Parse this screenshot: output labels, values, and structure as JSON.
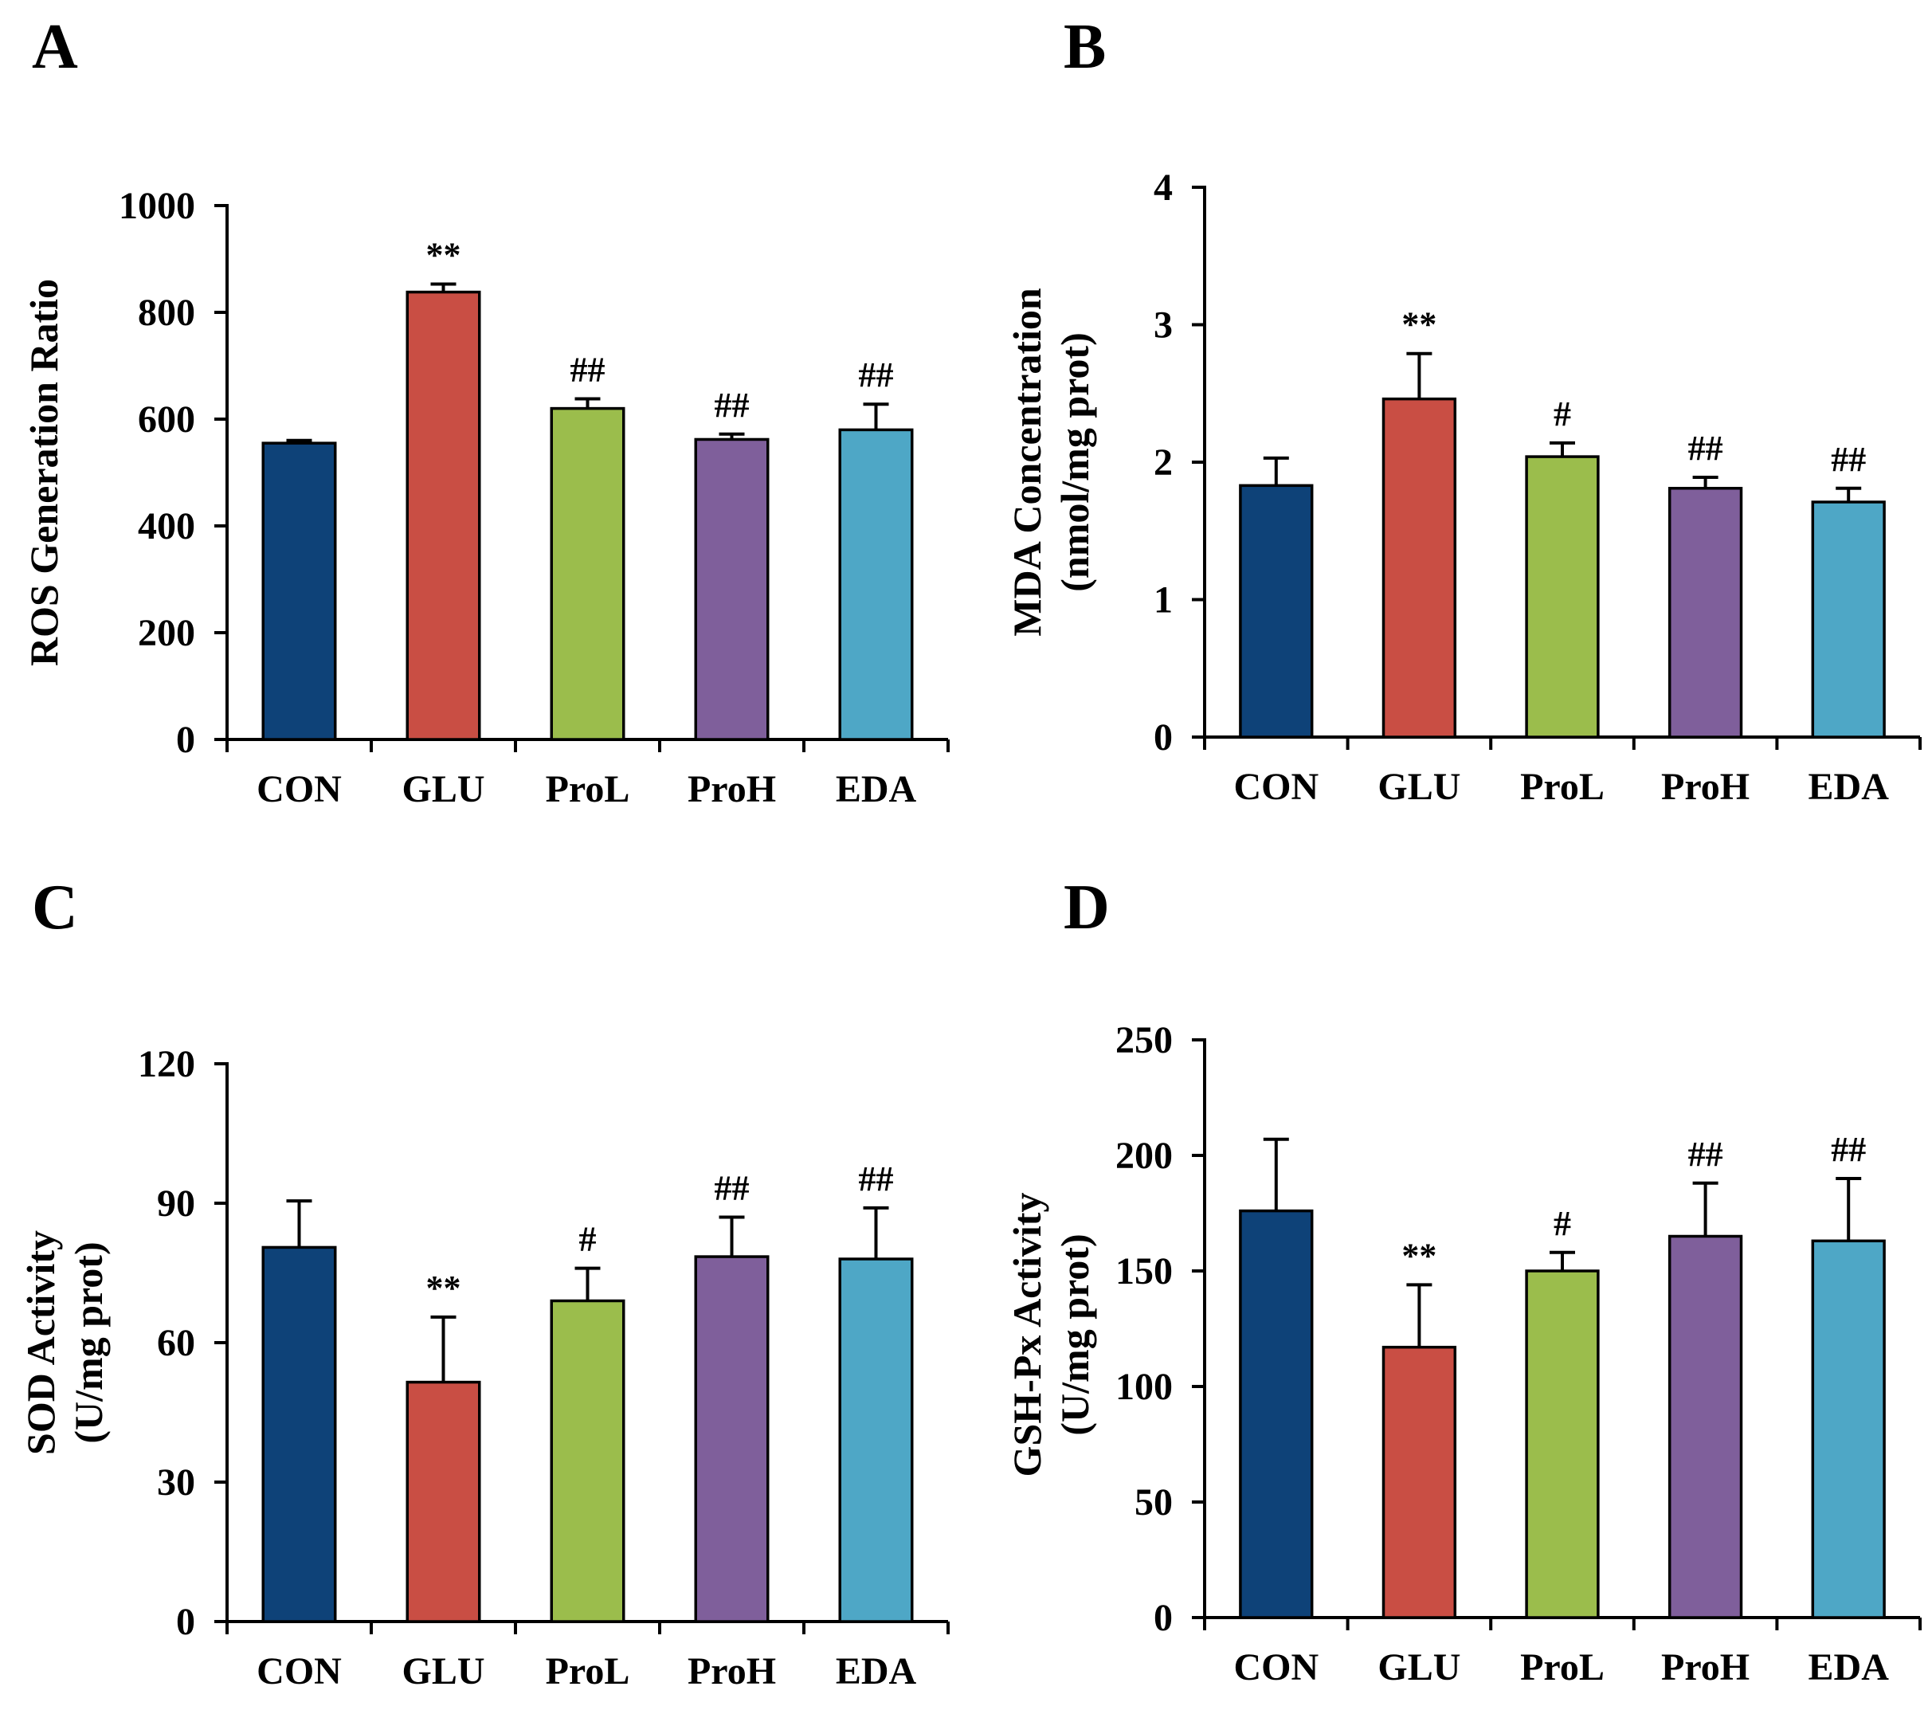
{
  "chart_data": [
    {
      "panel": "A",
      "type": "bar",
      "ylabel_lines": [
        "ROS Generation Ratio"
      ],
      "ylim": [
        0,
        1000
      ],
      "yticks": [
        0,
        200,
        400,
        600,
        800,
        1000
      ],
      "categories": [
        "CON",
        "GLU",
        "ProL",
        "ProH",
        "EDA"
      ],
      "values": [
        555,
        838,
        620,
        562,
        580
      ],
      "errors": [
        5,
        15,
        18,
        10,
        48
      ],
      "significance": [
        "",
        "**",
        "##",
        "##",
        "##"
      ]
    },
    {
      "panel": "B",
      "type": "bar",
      "ylabel_lines": [
        "MDA Concentration",
        "(nmol/mg prot)"
      ],
      "ylim": [
        0,
        4
      ],
      "yticks": [
        0,
        1,
        2,
        3,
        4
      ],
      "categories": [
        "CON",
        "GLU",
        "ProL",
        "ProH",
        "EDA"
      ],
      "values": [
        1.83,
        2.46,
        2.04,
        1.81,
        1.71
      ],
      "errors": [
        0.2,
        0.33,
        0.1,
        0.08,
        0.1
      ],
      "significance": [
        "",
        "**",
        "#",
        "##",
        "##"
      ]
    },
    {
      "panel": "C",
      "type": "bar",
      "ylabel_lines": [
        "SOD Activity",
        "(U/mg prot)"
      ],
      "ylim": [
        0,
        120
      ],
      "yticks": [
        0,
        30,
        60,
        90,
        120
      ],
      "categories": [
        "CON",
        "GLU",
        "ProL",
        "ProH",
        "EDA"
      ],
      "values": [
        80.5,
        51.5,
        69,
        78.5,
        78
      ],
      "errors": [
        10,
        14,
        7,
        8.5,
        11
      ],
      "significance": [
        "",
        "**",
        "#",
        "##",
        "##"
      ]
    },
    {
      "panel": "D",
      "type": "bar",
      "ylabel_lines": [
        "GSH-Px Activity",
        "(U/mg prot)"
      ],
      "ylim": [
        0,
        250
      ],
      "yticks": [
        0,
        50,
        100,
        150,
        200,
        250
      ],
      "categories": [
        "CON",
        "GLU",
        "ProL",
        "ProH",
        "EDA"
      ],
      "values": [
        176,
        117,
        150,
        165,
        163
      ],
      "errors": [
        31,
        27,
        8,
        23,
        27
      ],
      "significance": [
        "",
        "**",
        "#",
        "##",
        "##"
      ]
    }
  ],
  "colors": {
    "CON": "#0e4278",
    "GLU": "#c94e44",
    "ProL": "#9bbd4c",
    "ProH": "#7f5f9b",
    "EDA": "#4ea7c6"
  }
}
